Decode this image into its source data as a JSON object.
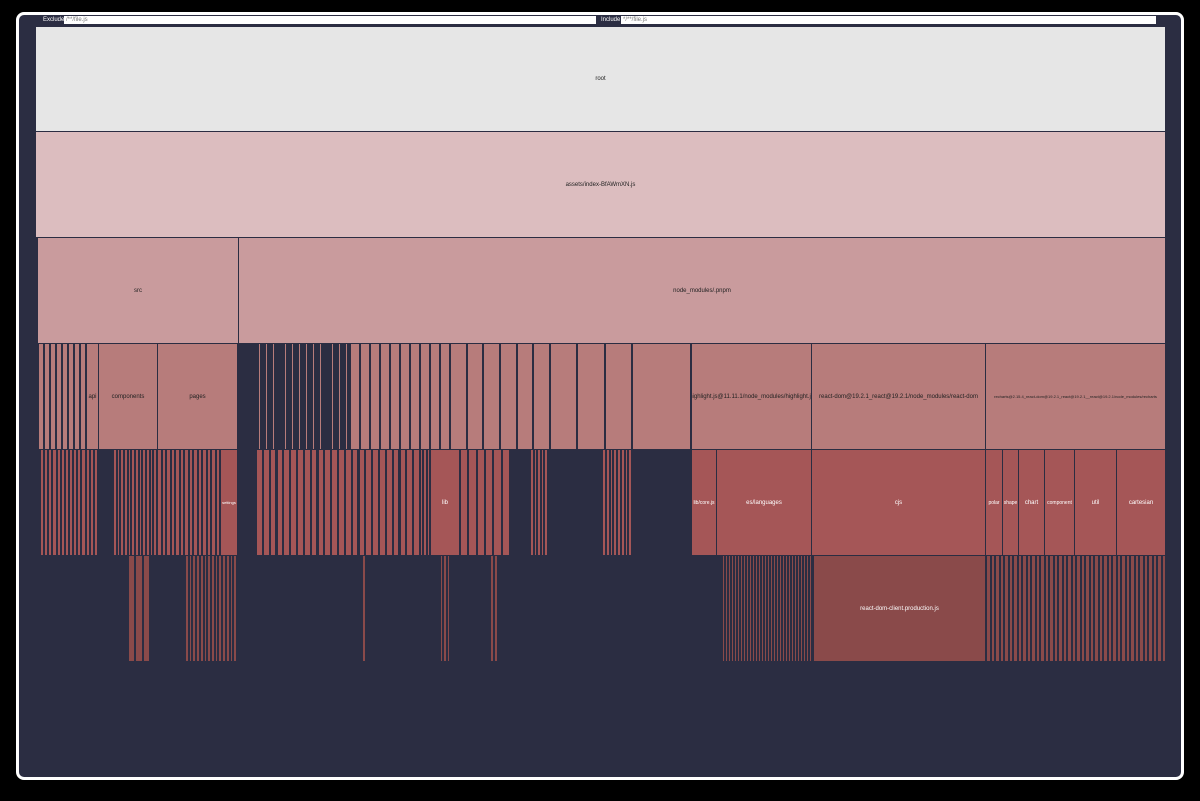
{
  "filters": {
    "exclude": {
      "label": "Exclude",
      "placeholder": "/**/file.js"
    },
    "include": {
      "label": "Include",
      "placeholder": "*/**/file.js"
    }
  },
  "nodes": [
    {
      "label": "root"
    },
    {
      "label": "assets/index-BfAWmXN.js"
    },
    {
      "label": "src"
    },
    {
      "label": "node_modules/.pnpm"
    },
    {
      "label": "api"
    },
    {
      "label": "components"
    },
    {
      "label": "pages"
    },
    {
      "label": "highlight.js@11.11.1/node_modules/highlight.js"
    },
    {
      "label": "react-dom@19.2.1_react@19.2.1/node_modules/react-dom"
    },
    {
      "label": "recharts@2.15.4_react-dom@19.2.1_react@19.2.1__react@19.2.1/node_modules/recharts"
    },
    {
      "label": "settings"
    },
    {
      "label": "lib"
    },
    {
      "label": "lib/core.js"
    },
    {
      "label": "es/languages"
    },
    {
      "label": "cjs"
    },
    {
      "label": "polar"
    },
    {
      "label": "shape"
    },
    {
      "label": "chart"
    },
    {
      "label": "component"
    },
    {
      "label": "util"
    },
    {
      "label": "cartesian"
    },
    {
      "label": "react-dom-client.production.js"
    }
  ]
}
